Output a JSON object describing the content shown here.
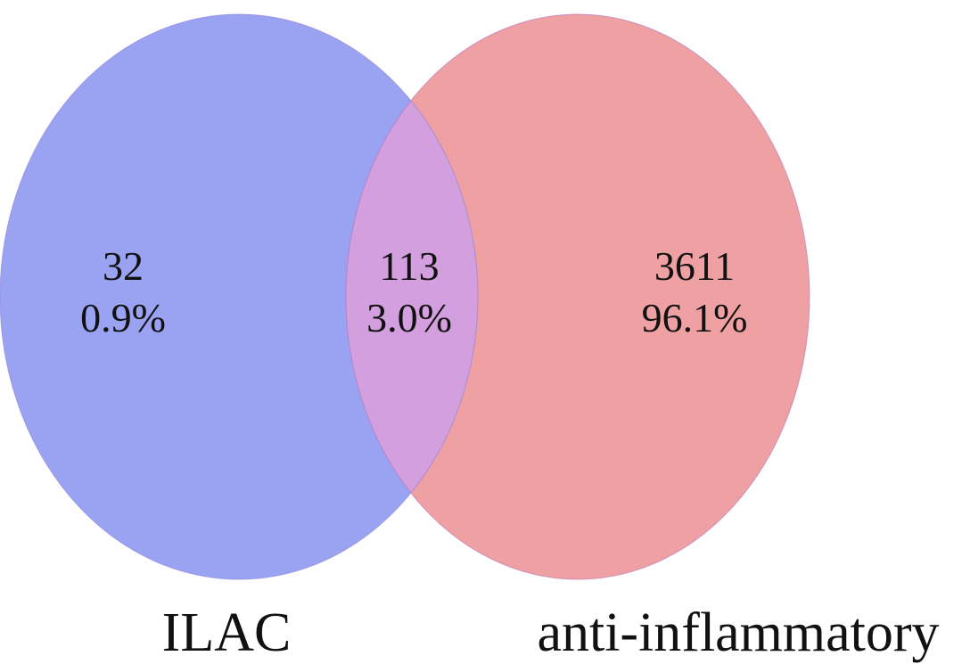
{
  "diagram": {
    "type": "venn",
    "sets": [
      {
        "label": "ILAC",
        "color": "#9aa2f2"
      },
      {
        "label": "anti-inflammatory",
        "color": "#eea0a2"
      }
    ],
    "overlap_color": "#d39fdf",
    "regions": {
      "left_only": {
        "count": "32",
        "percent": "0.9%"
      },
      "intersection": {
        "count": "113",
        "percent": "3.0%"
      },
      "right_only": {
        "count": "3611",
        "percent": "96.1%"
      }
    }
  }
}
